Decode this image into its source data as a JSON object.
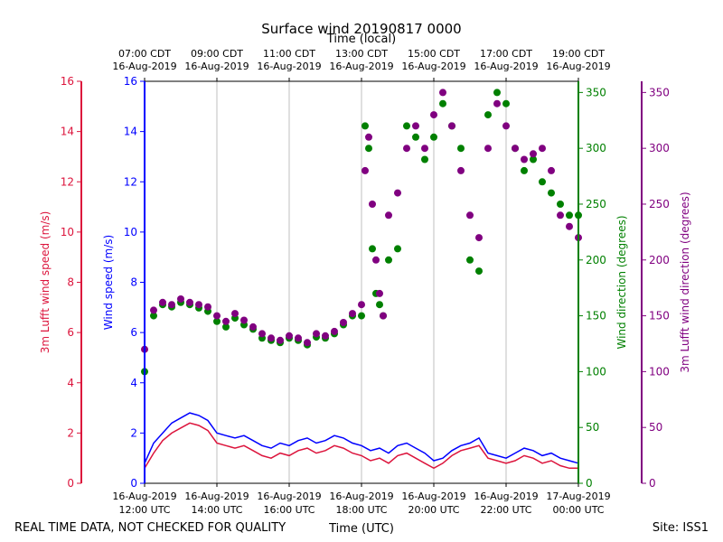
{
  "chart_data": {
    "type": "scatter",
    "title": "Surface wind 20190817 0000",
    "top_axis_label": "Time (local)",
    "xlabel": "Time (UTC)",
    "footer_left": "REAL TIME DATA, NOT CHECKED FOR QUALITY",
    "footer_right": "Site: ISS1",
    "x_range_hours_utc": [
      12,
      24
    ],
    "top_ticks": [
      {
        "line1": "07:00 CDT",
        "line2": "16-Aug-2019",
        "hour": 12
      },
      {
        "line1": "09:00 CDT",
        "line2": "16-Aug-2019",
        "hour": 14
      },
      {
        "line1": "11:00 CDT",
        "line2": "16-Aug-2019",
        "hour": 16
      },
      {
        "line1": "13:00 CDT",
        "line2": "16-Aug-2019",
        "hour": 18
      },
      {
        "line1": "15:00 CDT",
        "line2": "16-Aug-2019",
        "hour": 20
      },
      {
        "line1": "17:00 CDT",
        "line2": "16-Aug-2019",
        "hour": 22
      },
      {
        "line1": "19:00 CDT",
        "line2": "16-Aug-2019",
        "hour": 24
      }
    ],
    "bottom_ticks": [
      {
        "line1": "16-Aug-2019",
        "line2": "12:00 UTC",
        "hour": 12
      },
      {
        "line1": "16-Aug-2019",
        "line2": "14:00 UTC",
        "hour": 14
      },
      {
        "line1": "16-Aug-2019",
        "line2": "16:00 UTC",
        "hour": 16
      },
      {
        "line1": "16-Aug-2019",
        "line2": "18:00 UTC",
        "hour": 18
      },
      {
        "line1": "16-Aug-2019",
        "line2": "20:00 UTC",
        "hour": 20
      },
      {
        "line1": "16-Aug-2019",
        "line2": "22:00 UTC",
        "hour": 22
      },
      {
        "line1": "17-Aug-2019",
        "line2": "00:00 UTC",
        "hour": 24
      }
    ],
    "axes": {
      "lufft_speed": {
        "label": "3m Lufft wind speed (m/s)",
        "range": [
          0,
          16
        ],
        "ticks": [
          0,
          2,
          4,
          6,
          8,
          10,
          12,
          14,
          16
        ],
        "color": "#dc143c"
      },
      "speed": {
        "label": "Wind speed (m/s)",
        "range": [
          0,
          16
        ],
        "ticks": [
          0,
          2,
          4,
          6,
          8,
          10,
          12,
          14,
          16
        ],
        "color": "#0000ff"
      },
      "direction": {
        "label": "Wind direction (degrees)",
        "range": [
          0,
          360
        ],
        "ticks": [
          0,
          50,
          100,
          150,
          200,
          250,
          300,
          350
        ],
        "color": "#008000"
      },
      "lufft_direction": {
        "label": "3m Lufft wind direction (degrees)",
        "range": [
          0,
          360
        ],
        "ticks": [
          0,
          50,
          100,
          150,
          200,
          250,
          300,
          350
        ],
        "color": "#800080"
      }
    },
    "series": [
      {
        "name": "Wind speed (m/s)",
        "kind": "line",
        "axis": "speed",
        "color": "#0000ff",
        "x": [
          12.0,
          12.25,
          12.5,
          12.75,
          13.0,
          13.25,
          13.5,
          13.75,
          14.0,
          14.25,
          14.5,
          14.75,
          15.0,
          15.25,
          15.5,
          15.75,
          16.0,
          16.25,
          16.5,
          16.75,
          17.0,
          17.25,
          17.5,
          17.75,
          18.0,
          18.25,
          18.5,
          18.75,
          19.0,
          19.25,
          19.5,
          19.75,
          20.0,
          20.25,
          20.5,
          20.75,
          21.0,
          21.25,
          21.5,
          21.75,
          22.0,
          22.25,
          22.5,
          22.75,
          23.0,
          23.25,
          23.5,
          23.75,
          24.0
        ],
        "y": [
          0.8,
          1.6,
          2.0,
          2.4,
          2.6,
          2.8,
          2.7,
          2.5,
          2.0,
          1.9,
          1.8,
          1.9,
          1.7,
          1.5,
          1.4,
          1.6,
          1.5,
          1.7,
          1.8,
          1.6,
          1.7,
          1.9,
          1.8,
          1.6,
          1.5,
          1.3,
          1.4,
          1.2,
          1.5,
          1.6,
          1.4,
          1.2,
          0.9,
          1.0,
          1.3,
          1.5,
          1.6,
          1.8,
          1.2,
          1.1,
          1.0,
          1.2,
          1.4,
          1.3,
          1.1,
          1.2,
          1.0,
          0.9,
          0.8
        ]
      },
      {
        "name": "3m Lufft wind speed (m/s)",
        "kind": "line",
        "axis": "lufft_speed",
        "color": "#dc143c",
        "x": [
          12.0,
          12.25,
          12.5,
          12.75,
          13.0,
          13.25,
          13.5,
          13.75,
          14.0,
          14.25,
          14.5,
          14.75,
          15.0,
          15.25,
          15.5,
          15.75,
          16.0,
          16.25,
          16.5,
          16.75,
          17.0,
          17.25,
          17.5,
          17.75,
          18.0,
          18.25,
          18.5,
          18.75,
          19.0,
          19.25,
          19.5,
          19.75,
          20.0,
          20.25,
          20.5,
          20.75,
          21.0,
          21.25,
          21.5,
          21.75,
          22.0,
          22.25,
          22.5,
          22.75,
          23.0,
          23.25,
          23.5,
          23.75,
          24.0
        ],
        "y": [
          0.6,
          1.2,
          1.7,
          2.0,
          2.2,
          2.4,
          2.3,
          2.1,
          1.6,
          1.5,
          1.4,
          1.5,
          1.3,
          1.1,
          1.0,
          1.2,
          1.1,
          1.3,
          1.4,
          1.2,
          1.3,
          1.5,
          1.4,
          1.2,
          1.1,
          0.9,
          1.0,
          0.8,
          1.1,
          1.2,
          1.0,
          0.8,
          0.6,
          0.8,
          1.1,
          1.3,
          1.4,
          1.5,
          1.0,
          0.9,
          0.8,
          0.9,
          1.1,
          1.0,
          0.8,
          0.9,
          0.7,
          0.6,
          0.6
        ]
      },
      {
        "name": "Wind direction (degrees)",
        "kind": "scatter",
        "axis": "direction",
        "color": "#008000",
        "x": [
          12.0,
          12.25,
          12.5,
          12.75,
          13.0,
          13.25,
          13.5,
          13.75,
          14.0,
          14.25,
          14.5,
          14.75,
          15.0,
          15.25,
          15.5,
          15.75,
          16.0,
          16.25,
          16.5,
          16.75,
          17.0,
          17.25,
          17.5,
          17.75,
          18.0,
          18.1,
          18.2,
          18.3,
          18.4,
          18.5,
          18.6,
          18.75,
          19.0,
          19.25,
          19.5,
          19.75,
          20.0,
          20.25,
          20.5,
          20.75,
          21.0,
          21.25,
          21.5,
          21.75,
          22.0,
          22.25,
          22.5,
          22.75,
          23.0,
          23.25,
          23.5,
          23.75,
          24.0
        ],
        "y": [
          100,
          150,
          160,
          158,
          162,
          160,
          157,
          154,
          145,
          140,
          148,
          142,
          138,
          130,
          128,
          126,
          130,
          128,
          124,
          131,
          130,
          134,
          142,
          150,
          150,
          320,
          300,
          210,
          170,
          160,
          150,
          200,
          210,
          320,
          310,
          290,
          310,
          340,
          320,
          300,
          200,
          190,
          330,
          350,
          340,
          300,
          280,
          290,
          270,
          260,
          250,
          240,
          240
        ]
      },
      {
        "name": "3m Lufft wind direction (degrees)",
        "kind": "scatter",
        "axis": "lufft_direction",
        "color": "#800080",
        "x": [
          12.0,
          12.25,
          12.5,
          12.75,
          13.0,
          13.25,
          13.5,
          13.75,
          14.0,
          14.25,
          14.5,
          14.75,
          15.0,
          15.25,
          15.5,
          15.75,
          16.0,
          16.25,
          16.5,
          16.75,
          17.0,
          17.25,
          17.5,
          17.75,
          18.0,
          18.1,
          18.2,
          18.3,
          18.4,
          18.5,
          18.6,
          18.75,
          19.0,
          19.25,
          19.5,
          19.75,
          20.0,
          20.25,
          20.5,
          20.75,
          21.0,
          21.25,
          21.5,
          21.75,
          22.0,
          22.25,
          22.5,
          22.75,
          23.0,
          23.25,
          23.5,
          23.75,
          24.0
        ],
        "y": [
          120,
          155,
          162,
          160,
          165,
          162,
          160,
          158,
          150,
          145,
          152,
          146,
          140,
          134,
          130,
          128,
          132,
          130,
          126,
          134,
          132,
          136,
          144,
          152,
          160,
          280,
          310,
          250,
          200,
          170,
          150,
          240,
          260,
          300,
          320,
          300,
          330,
          350,
          320,
          280,
          240,
          220,
          300,
          340,
          320,
          300,
          290,
          295,
          300,
          280,
          240,
          230,
          220
        ]
      }
    ]
  }
}
